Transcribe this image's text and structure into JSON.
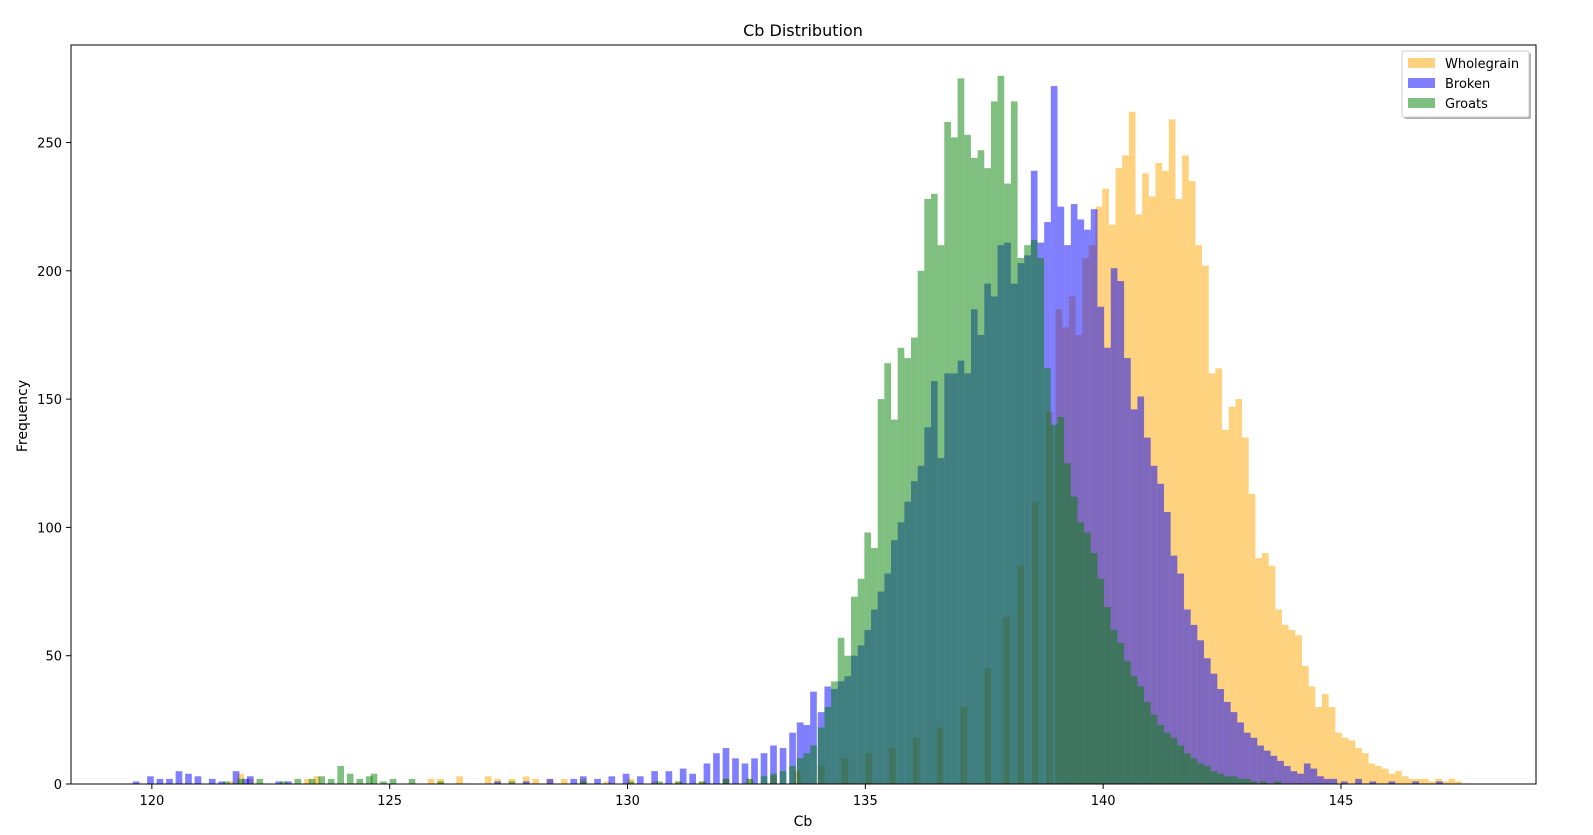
{
  "chart_data": {
    "type": "bar",
    "title": "Cb Distribution",
    "xlabel": "Cb",
    "ylabel": "Frequency",
    "xlim": [
      118.3,
      149.1
    ],
    "ylim": [
      0,
      288
    ],
    "x_ticks": [
      120,
      125,
      130,
      135,
      140,
      145
    ],
    "y_ticks": [
      0,
      50,
      100,
      150,
      200,
      250
    ],
    "grid": false,
    "legend_position": "top-right",
    "bin_width": 0.14,
    "series": [
      {
        "name": "Wholegrain",
        "color": "#FFA500",
        "alpha": 0.5,
        "bins": [
          [
            121.6,
            1
          ],
          [
            121.8,
            4
          ],
          [
            122.0,
            2
          ],
          [
            123.2,
            2
          ],
          [
            123.4,
            3
          ],
          [
            125.8,
            2
          ],
          [
            126.0,
            2
          ],
          [
            126.4,
            3
          ],
          [
            127.0,
            3
          ],
          [
            127.2,
            2
          ],
          [
            127.5,
            2
          ],
          [
            127.8,
            3
          ],
          [
            128.0,
            2
          ],
          [
            128.3,
            2
          ],
          [
            128.6,
            2
          ],
          [
            129.0,
            2
          ],
          [
            129.5,
            1
          ],
          [
            130.0,
            2
          ],
          [
            130.5,
            1
          ],
          [
            131.0,
            1
          ],
          [
            131.5,
            1
          ],
          [
            132.0,
            2
          ],
          [
            132.5,
            2
          ],
          [
            133.0,
            3
          ],
          [
            133.5,
            5
          ],
          [
            134.0,
            7
          ],
          [
            134.5,
            10
          ],
          [
            135.0,
            12
          ],
          [
            135.5,
            14
          ],
          [
            136.0,
            18
          ],
          [
            136.5,
            22
          ],
          [
            137.0,
            30
          ],
          [
            137.5,
            45
          ],
          [
            137.9,
            65
          ],
          [
            138.2,
            85
          ],
          [
            138.5,
            110
          ],
          [
            138.8,
            145
          ],
          [
            139.0,
            185
          ],
          [
            139.14,
            178
          ],
          [
            139.28,
            190
          ],
          [
            139.42,
            175
          ],
          [
            139.56,
            205
          ],
          [
            139.7,
            210
          ],
          [
            139.84,
            225
          ],
          [
            139.98,
            232
          ],
          [
            140.12,
            218
          ],
          [
            140.26,
            240
          ],
          [
            140.4,
            245
          ],
          [
            140.54,
            262
          ],
          [
            140.68,
            222
          ],
          [
            140.82,
            238
          ],
          [
            140.96,
            229
          ],
          [
            141.1,
            242
          ],
          [
            141.24,
            239
          ],
          [
            141.38,
            259
          ],
          [
            141.52,
            228
          ],
          [
            141.66,
            245
          ],
          [
            141.8,
            235
          ],
          [
            141.94,
            210
          ],
          [
            142.08,
            202
          ],
          [
            142.22,
            160
          ],
          [
            142.36,
            162
          ],
          [
            142.5,
            138
          ],
          [
            142.64,
            147
          ],
          [
            142.78,
            150
          ],
          [
            142.92,
            135
          ],
          [
            143.06,
            113
          ],
          [
            143.2,
            88
          ],
          [
            143.34,
            90
          ],
          [
            143.48,
            85
          ],
          [
            143.62,
            68
          ],
          [
            143.76,
            62
          ],
          [
            143.9,
            60
          ],
          [
            144.04,
            58
          ],
          [
            144.18,
            46
          ],
          [
            144.32,
            38
          ],
          [
            144.46,
            30
          ],
          [
            144.6,
            35
          ],
          [
            144.74,
            30
          ],
          [
            144.88,
            20
          ],
          [
            145.02,
            18
          ],
          [
            145.16,
            17
          ],
          [
            145.3,
            14
          ],
          [
            145.44,
            12
          ],
          [
            145.58,
            8
          ],
          [
            145.72,
            7
          ],
          [
            145.86,
            6
          ],
          [
            146.0,
            4
          ],
          [
            146.14,
            5
          ],
          [
            146.28,
            3
          ],
          [
            146.42,
            2
          ],
          [
            146.56,
            2
          ],
          [
            146.7,
            2
          ],
          [
            146.84,
            1
          ],
          [
            146.98,
            2
          ],
          [
            147.12,
            1
          ],
          [
            147.26,
            2
          ],
          [
            147.4,
            1
          ]
        ]
      },
      {
        "name": "Broken",
        "color": "#0000FF",
        "alpha": 0.5,
        "bins": [
          [
            119.6,
            1
          ],
          [
            119.9,
            3
          ],
          [
            120.1,
            2
          ],
          [
            120.3,
            2
          ],
          [
            120.5,
            5
          ],
          [
            120.7,
            4
          ],
          [
            120.9,
            3
          ],
          [
            121.2,
            2
          ],
          [
            121.4,
            1
          ],
          [
            121.7,
            5
          ],
          [
            121.9,
            2
          ],
          [
            122.0,
            3
          ],
          [
            122.6,
            1
          ],
          [
            122.8,
            1
          ],
          [
            127.2,
            1
          ],
          [
            127.8,
            1
          ],
          [
            128.3,
            2
          ],
          [
            128.8,
            2
          ],
          [
            129.0,
            3
          ],
          [
            129.3,
            2
          ],
          [
            129.6,
            3
          ],
          [
            129.9,
            4
          ],
          [
            130.2,
            3
          ],
          [
            130.5,
            5
          ],
          [
            130.8,
            5
          ],
          [
            131.1,
            6
          ],
          [
            131.3,
            4
          ],
          [
            131.6,
            8
          ],
          [
            131.8,
            12
          ],
          [
            132.0,
            14
          ],
          [
            132.2,
            10
          ],
          [
            132.4,
            8
          ],
          [
            132.6,
            10
          ],
          [
            132.8,
            12
          ],
          [
            133.0,
            15
          ],
          [
            133.2,
            14
          ],
          [
            133.4,
            20
          ],
          [
            133.56,
            24
          ],
          [
            133.7,
            23
          ],
          [
            133.84,
            36
          ],
          [
            134.0,
            28
          ],
          [
            134.14,
            38
          ],
          [
            134.28,
            37
          ],
          [
            134.42,
            40
          ],
          [
            134.56,
            42
          ],
          [
            134.7,
            50
          ],
          [
            134.84,
            54
          ],
          [
            134.98,
            60
          ],
          [
            135.12,
            68
          ],
          [
            135.26,
            75
          ],
          [
            135.4,
            82
          ],
          [
            135.54,
            95
          ],
          [
            135.68,
            102
          ],
          [
            135.82,
            110
          ],
          [
            135.96,
            118
          ],
          [
            136.1,
            124
          ],
          [
            136.24,
            139
          ],
          [
            136.38,
            157
          ],
          [
            136.52,
            127
          ],
          [
            136.66,
            160
          ],
          [
            136.8,
            160
          ],
          [
            136.94,
            165
          ],
          [
            137.08,
            160
          ],
          [
            137.22,
            185
          ],
          [
            137.36,
            175
          ],
          [
            137.5,
            195
          ],
          [
            137.64,
            190
          ],
          [
            137.78,
            210
          ],
          [
            137.92,
            211
          ],
          [
            138.06,
            195
          ],
          [
            138.2,
            203
          ],
          [
            138.34,
            206
          ],
          [
            138.48,
            239
          ],
          [
            138.62,
            211
          ],
          [
            138.76,
            219
          ],
          [
            138.9,
            272
          ],
          [
            139.04,
            225
          ],
          [
            139.18,
            210
          ],
          [
            139.32,
            226
          ],
          [
            139.46,
            220
          ],
          [
            139.6,
            216
          ],
          [
            139.74,
            224
          ],
          [
            139.88,
            186
          ],
          [
            140.02,
            170
          ],
          [
            140.16,
            201
          ],
          [
            140.3,
            196
          ],
          [
            140.44,
            166
          ],
          [
            140.58,
            146
          ],
          [
            140.72,
            151
          ],
          [
            140.86,
            135
          ],
          [
            141.0,
            124
          ],
          [
            141.14,
            117
          ],
          [
            141.28,
            106
          ],
          [
            141.42,
            89
          ],
          [
            141.56,
            82
          ],
          [
            141.7,
            68
          ],
          [
            141.84,
            62
          ],
          [
            141.98,
            56
          ],
          [
            142.12,
            49
          ],
          [
            142.26,
            43
          ],
          [
            142.4,
            37
          ],
          [
            142.54,
            32
          ],
          [
            142.68,
            28
          ],
          [
            142.82,
            24
          ],
          [
            142.96,
            20
          ],
          [
            143.1,
            18
          ],
          [
            143.24,
            15
          ],
          [
            143.38,
            13
          ],
          [
            143.52,
            11
          ],
          [
            143.66,
            9
          ],
          [
            143.8,
            7
          ],
          [
            143.94,
            5
          ],
          [
            144.08,
            4
          ],
          [
            144.22,
            8
          ],
          [
            144.36,
            6
          ],
          [
            144.5,
            3
          ],
          [
            144.64,
            2
          ],
          [
            144.78,
            2
          ],
          [
            145.0,
            1
          ],
          [
            145.3,
            2
          ],
          [
            145.6,
            1
          ],
          [
            146.0,
            1
          ],
          [
            146.5,
            1
          ],
          [
            147.0,
            1
          ]
        ]
      },
      {
        "name": "Groats",
        "color": "#008000",
        "alpha": 0.5,
        "bins": [
          [
            121.5,
            1
          ],
          [
            121.8,
            2
          ],
          [
            122.2,
            2
          ],
          [
            122.7,
            1
          ],
          [
            123.0,
            2
          ],
          [
            123.3,
            2
          ],
          [
            123.5,
            3
          ],
          [
            123.7,
            2
          ],
          [
            123.9,
            7
          ],
          [
            124.1,
            4
          ],
          [
            124.3,
            2
          ],
          [
            124.5,
            3
          ],
          [
            124.6,
            4
          ],
          [
            124.8,
            1
          ],
          [
            125.0,
            2
          ],
          [
            125.4,
            2
          ],
          [
            126.0,
            1
          ],
          [
            127.5,
            1
          ],
          [
            129.0,
            1
          ],
          [
            130.0,
            1
          ],
          [
            130.6,
            1
          ],
          [
            131.0,
            1
          ],
          [
            131.5,
            1
          ],
          [
            132.0,
            2
          ],
          [
            132.5,
            2
          ],
          [
            132.8,
            3
          ],
          [
            133.0,
            4
          ],
          [
            133.2,
            5
          ],
          [
            133.4,
            7
          ],
          [
            133.56,
            10
          ],
          [
            133.7,
            12
          ],
          [
            133.84,
            15
          ],
          [
            134.0,
            22
          ],
          [
            134.14,
            30
          ],
          [
            134.28,
            40
          ],
          [
            134.42,
            57
          ],
          [
            134.56,
            50
          ],
          [
            134.7,
            73
          ],
          [
            134.84,
            80
          ],
          [
            134.98,
            98
          ],
          [
            135.12,
            92
          ],
          [
            135.26,
            150
          ],
          [
            135.4,
            164
          ],
          [
            135.54,
            142
          ],
          [
            135.68,
            170
          ],
          [
            135.82,
            166
          ],
          [
            135.96,
            174
          ],
          [
            136.1,
            200
          ],
          [
            136.24,
            228
          ],
          [
            136.38,
            230
          ],
          [
            136.52,
            210
          ],
          [
            136.66,
            258
          ],
          [
            136.8,
            252
          ],
          [
            136.94,
            275
          ],
          [
            137.08,
            253
          ],
          [
            137.22,
            244
          ],
          [
            137.36,
            247
          ],
          [
            137.5,
            240
          ],
          [
            137.64,
            266
          ],
          [
            137.78,
            276
          ],
          [
            137.92,
            234
          ],
          [
            138.06,
            266
          ],
          [
            138.2,
            205
          ],
          [
            138.34,
            210
          ],
          [
            138.48,
            212
          ],
          [
            138.62,
            205
          ],
          [
            138.76,
            162
          ],
          [
            138.9,
            140
          ],
          [
            139.04,
            143
          ],
          [
            139.18,
            125
          ],
          [
            139.32,
            112
          ],
          [
            139.46,
            102
          ],
          [
            139.6,
            98
          ],
          [
            139.74,
            90
          ],
          [
            139.88,
            80
          ],
          [
            140.02,
            69
          ],
          [
            140.16,
            60
          ],
          [
            140.3,
            55
          ],
          [
            140.44,
            48
          ],
          [
            140.58,
            42
          ],
          [
            140.72,
            38
          ],
          [
            140.86,
            32
          ],
          [
            141.0,
            27
          ],
          [
            141.14,
            23
          ],
          [
            141.28,
            20
          ],
          [
            141.42,
            18
          ],
          [
            141.56,
            15
          ],
          [
            141.7,
            12
          ],
          [
            141.84,
            10
          ],
          [
            141.98,
            8
          ],
          [
            142.12,
            7
          ],
          [
            142.26,
            5
          ],
          [
            142.4,
            4
          ],
          [
            142.54,
            3
          ],
          [
            142.68,
            3
          ],
          [
            142.82,
            2
          ],
          [
            142.96,
            2
          ],
          [
            143.1,
            1
          ],
          [
            143.3,
            1
          ],
          [
            143.6,
            1
          ]
        ]
      }
    ]
  }
}
